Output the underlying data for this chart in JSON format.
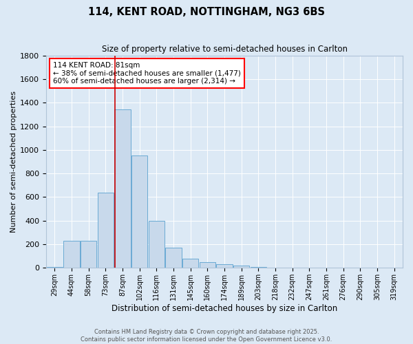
{
  "title1": "114, KENT ROAD, NOTTINGHAM, NG3 6BS",
  "title2": "Size of property relative to semi-detached houses in Carlton",
  "xlabel": "Distribution of semi-detached houses by size in Carlton",
  "ylabel": "Number of semi-detached properties",
  "categories": [
    "29sqm",
    "44sqm",
    "58sqm",
    "73sqm",
    "87sqm",
    "102sqm",
    "116sqm",
    "131sqm",
    "145sqm",
    "160sqm",
    "174sqm",
    "189sqm",
    "203sqm",
    "218sqm",
    "232sqm",
    "247sqm",
    "261sqm",
    "276sqm",
    "290sqm",
    "305sqm",
    "319sqm"
  ],
  "values": [
    10,
    230,
    230,
    640,
    1340,
    950,
    400,
    170,
    80,
    50,
    30,
    20,
    10,
    5,
    3,
    2,
    2,
    1,
    1,
    0,
    0
  ],
  "bar_color": "#c8d9eb",
  "bar_edge_color": "#6aaad4",
  "background_color": "#dce9f5",
  "plot_bg_color": "#dce9f5",
  "annotation_title": "114 KENT ROAD: 81sqm",
  "annotation_line1": "← 38% of semi-detached houses are smaller (1,477)",
  "annotation_line2": "60% of semi-detached houses are larger (2,314) →",
  "footer1": "Contains HM Land Registry data © Crown copyright and database right 2025.",
  "footer2": "Contains public sector information licensed under the Open Government Licence v3.0.",
  "ylim": [
    0,
    1800
  ],
  "yticks": [
    0,
    200,
    400,
    600,
    800,
    1000,
    1200,
    1400,
    1600,
    1800
  ],
  "red_line_index": 3.57
}
